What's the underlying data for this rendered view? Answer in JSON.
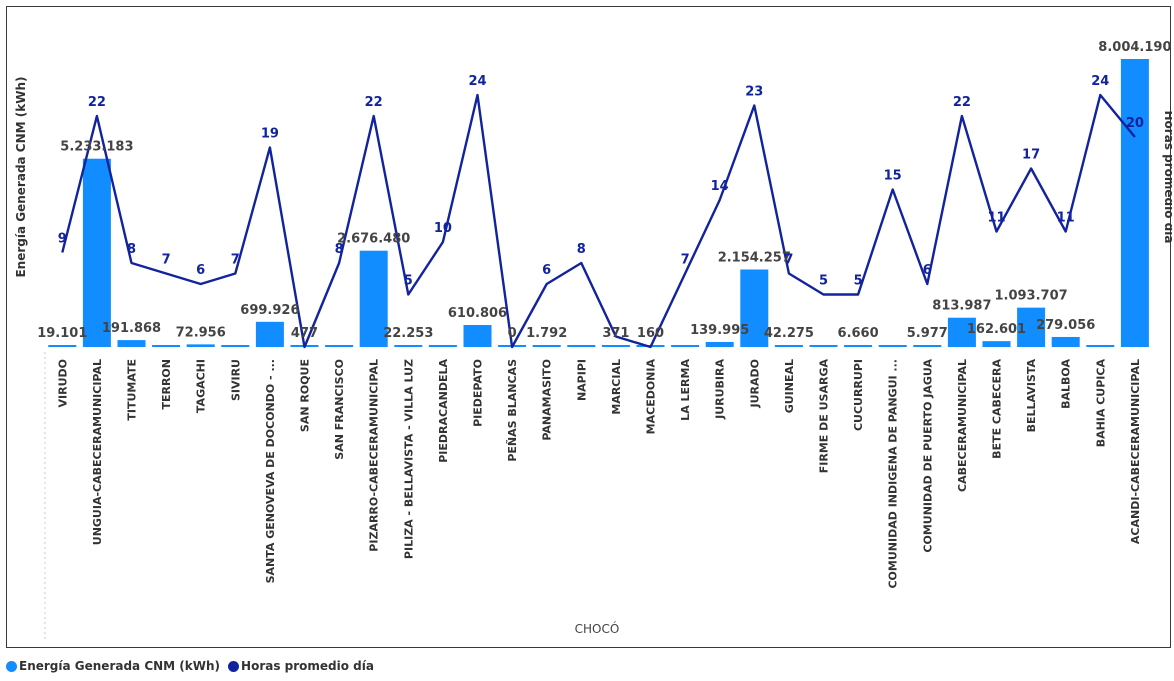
{
  "chart_data": {
    "type": "bar",
    "xlabel": "CHOCÓ",
    "ylabel": "Energía Generada CNM (kWh)",
    "y2label": "Horas promedio día",
    "colors": {
      "bar": "#118DFF",
      "line": "#12239E"
    },
    "categories": [
      "VIRUDO",
      "UNGUIA-CABECERAMUNICIPAL",
      "TITUMATE",
      "TERRON",
      "TAGACHI",
      "SIVIRU",
      "SANTA GENOVEVA DE DOCONDO - ...",
      "SAN ROQUE",
      "SAN FRANCISCO",
      "PIZARRO-CABECERAMUNICIPAL",
      "PILIZA - BELLAVISTA - VILLA LUZ",
      "PIEDRACANDELA",
      "PIEDEPATO",
      "PEÑAS BLANCAS",
      "PANAMASITO",
      "NAPIPI",
      "MARCIAL",
      "MACEDONIA",
      "LA LERMA",
      "JURUBIRA",
      "JURADO",
      "GUINEAL",
      "FIRME DE USARGA",
      "CUCURRUPI",
      "COMUNIDAD INDIGENA DE PANGUI ...",
      "COMUNIDAD DE PUERTO JAGUA",
      "CABECERAMUNICIPAL",
      "BETE CABECERA",
      "BELLAVISTA",
      "BALBOA",
      "BAHIA CUPICA",
      "ACANDI-CABECERAMUNICIPAL"
    ],
    "series": [
      {
        "name": "Energía Generada CNM (kWh)",
        "type": "bar",
        "values": [
          19101,
          5233183,
          191868,
          0,
          72956,
          0,
          699926,
          477,
          0,
          2676480,
          22253,
          0,
          610806,
          0,
          1792,
          0,
          371,
          160,
          0,
          139995,
          2154257,
          42275,
          0,
          6660,
          0,
          5977,
          813987,
          162601,
          1093707,
          279056,
          0,
          8004190
        ],
        "labels": [
          "19.101",
          "5.233.183",
          "191.868",
          "",
          "72.956",
          "",
          "699.926",
          "477",
          "",
          "2.676.480",
          "22.253",
          "",
          "610.806",
          "0",
          "1.792",
          "",
          "371",
          "160",
          "",
          "139.995",
          "2.154.257",
          "42.275",
          "",
          "6.660",
          "",
          "5.977",
          "813.987",
          "162.601",
          "1.093.707",
          "279.056",
          "",
          "8.004.190"
        ]
      },
      {
        "name": "Horas promedio día",
        "type": "line",
        "values": [
          9,
          22,
          8,
          7,
          6,
          7,
          19,
          0,
          8,
          22,
          5,
          10,
          24,
          0,
          6,
          8,
          1,
          0,
          7,
          14,
          23,
          7,
          5,
          5,
          15,
          6,
          22,
          11,
          17,
          11,
          24,
          20
        ],
        "labels": [
          "9",
          "22",
          "8",
          "7",
          "6",
          "7",
          "19",
          "",
          "8",
          "22",
          "5",
          "10",
          "24",
          "",
          "6",
          "8",
          "",
          "",
          "7",
          "14",
          "23",
          "7",
          "5",
          "5",
          "15",
          "6",
          "22",
          "11",
          "17",
          "11",
          "24",
          "20"
        ]
      }
    ]
  },
  "legend": {
    "items": [
      {
        "label": "Energía Generada CNM (kWh)",
        "color": "#118DFF"
      },
      {
        "label": "Horas promedio día",
        "color": "#12239E"
      }
    ]
  }
}
